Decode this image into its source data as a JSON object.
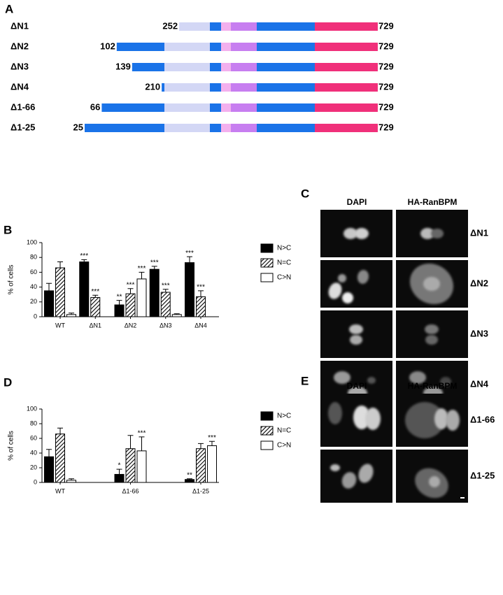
{
  "panel_labels": [
    "A",
    "B",
    "C",
    "D",
    "E"
  ],
  "constructs": {
    "rows": [
      {
        "name": "ΔN1",
        "start": 252,
        "end": 729
      },
      {
        "name": "ΔN2",
        "start": 102,
        "end": 729
      },
      {
        "name": "ΔN3",
        "start": 139,
        "end": 729
      },
      {
        "name": "ΔN4",
        "start": 210,
        "end": 729
      },
      {
        "name": "Δ1-66",
        "start": 66,
        "end": 729
      },
      {
        "name": "Δ1-25",
        "start": 25,
        "end": 729
      }
    ]
  },
  "chart_data": [
    {
      "type": "bar",
      "ylabel": "% of cells",
      "categories": [
        "WT",
        "ΔN1",
        "ΔN2",
        "ΔN3",
        "ΔN4"
      ],
      "series": [
        {
          "name": "N>C",
          "color": "#000000",
          "values": [
            35,
            74,
            16,
            64,
            73
          ],
          "errors": [
            10,
            3,
            6,
            4,
            8
          ],
          "stars": [
            null,
            "***",
            "**",
            "***",
            "***"
          ]
        },
        {
          "name": "N=C",
          "color": "#000000",
          "pattern": "hatch",
          "values": [
            66,
            26,
            31,
            33,
            27
          ],
          "errors": [
            8,
            3,
            7,
            4,
            8
          ],
          "stars": [
            null,
            "***",
            "***",
            "***",
            "***"
          ]
        },
        {
          "name": "C>N",
          "color": "#ffffff",
          "values": [
            3,
            0,
            51,
            3,
            0
          ],
          "errors": [
            2,
            0,
            9,
            1,
            0
          ],
          "stars": [
            null,
            null,
            "***",
            null,
            null
          ]
        }
      ],
      "ylim": [
        0,
        100
      ],
      "yticks": [
        0,
        20,
        40,
        60,
        80,
        100
      ]
    },
    {
      "type": "bar",
      "ylabel": "% of cells",
      "categories": [
        "WT",
        "Δ1-66",
        "Δ1-25"
      ],
      "series": [
        {
          "name": "N>C",
          "color": "#000000",
          "values": [
            35,
            11,
            4
          ],
          "errors": [
            10,
            7,
            1
          ],
          "stars": [
            null,
            "*",
            "**"
          ]
        },
        {
          "name": "N=C",
          "color": "#000000",
          "pattern": "hatch",
          "values": [
            66,
            46,
            46
          ],
          "errors": [
            8,
            18,
            7
          ],
          "stars": [
            null,
            null,
            null
          ]
        },
        {
          "name": "C>N",
          "color": "#ffffff",
          "values": [
            3,
            43,
            50
          ],
          "errors": [
            2,
            19,
            6
          ],
          "stars": [
            null,
            "***",
            "***"
          ]
        }
      ],
      "ylim": [
        0,
        100
      ],
      "yticks": [
        0,
        20,
        40,
        60,
        80,
        100
      ]
    }
  ],
  "images_c": {
    "columns": [
      "DAPI",
      "HA-RanBPM"
    ],
    "rows": [
      "ΔN1",
      "ΔN2",
      "ΔN3",
      "ΔN4"
    ]
  },
  "images_e": {
    "columns": [
      "DAPI",
      "HA-RanBPM"
    ],
    "rows": [
      "Δ1-66",
      "Δ1-25"
    ]
  }
}
